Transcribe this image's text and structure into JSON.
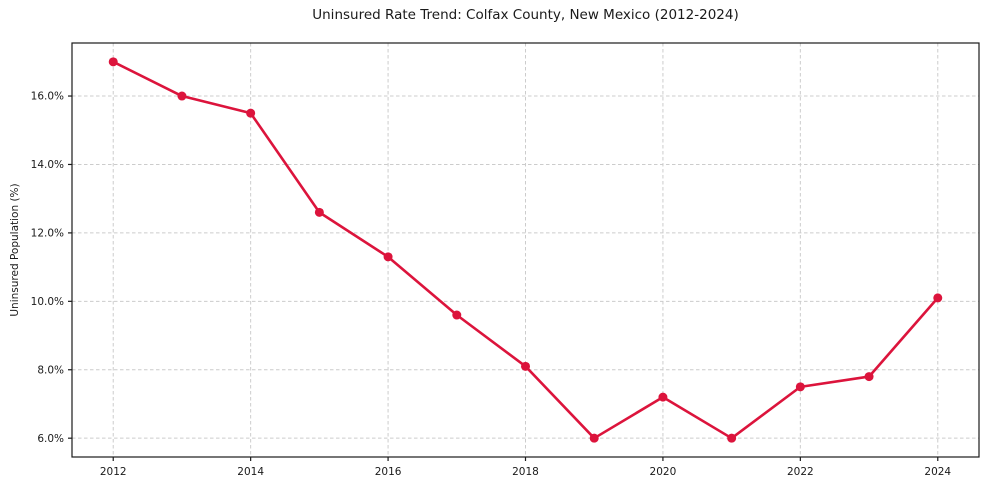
{
  "chart_data": {
    "type": "line",
    "title": "Uninsured Rate Trend: Colfax County, New Mexico (2012-2024)",
    "xlabel": "",
    "ylabel": "Uninsured Population (%)",
    "x": [
      2012,
      2013,
      2014,
      2015,
      2016,
      2017,
      2018,
      2019,
      2020,
      2021,
      2022,
      2023,
      2024
    ],
    "values": [
      17.0,
      16.0,
      15.5,
      12.6,
      11.3,
      9.6,
      8.1,
      6.0,
      7.2,
      6.0,
      7.5,
      7.8,
      10.1
    ],
    "xlim": [
      2011.4,
      2024.6
    ],
    "ylim": [
      5.45,
      17.55
    ],
    "xticks": [
      2012,
      2014,
      2016,
      2018,
      2020,
      2022,
      2024
    ],
    "xtick_labels": [
      "2012",
      "2014",
      "2016",
      "2018",
      "2020",
      "2022",
      "2024"
    ],
    "yticks": [
      6.0,
      8.0,
      10.0,
      12.0,
      14.0,
      16.0
    ],
    "ytick_labels": [
      "6.0%",
      "8.0%",
      "10.0%",
      "12.0%",
      "14.0%",
      "16.0%"
    ],
    "grid": true,
    "legend": "none",
    "line_color": "#dc143c",
    "grid_color": "#cccccc",
    "axis_color": "#1a1a1a",
    "text_color": "#1a1a1a"
  }
}
